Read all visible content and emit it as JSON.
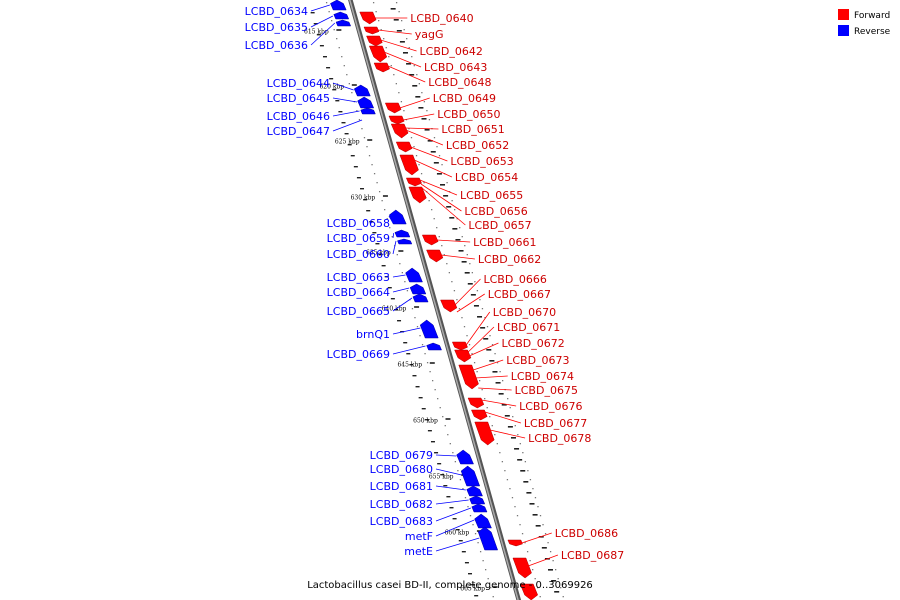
{
  "colors": {
    "forward": "#ff0000",
    "reverse": "#0000ff",
    "backbone": "#888888"
  },
  "legend": [
    {
      "label": "Forward",
      "color": "#ff0000"
    },
    {
      "label": "Reverse",
      "color": "#0000ff"
    }
  ],
  "footer": {
    "title": "Lactobacillus casei BD-II, complete genome - 0..3069926"
  },
  "ticks": [
    "615 kbp",
    "620 kbp",
    "625 kbp",
    "630 kbp",
    "635 kbp",
    "640 kbp",
    "645 kbp",
    "650 kbp",
    "655 kbp",
    "660 kbp",
    "665 kbp"
  ],
  "reverse_genes": [
    "LCBD_0634",
    "LCBD_0635",
    "LCBD_0636",
    "LCBD_0644",
    "LCBD_0645",
    "LCBD_0646",
    "LCBD_0647",
    "LCBD_0658",
    "LCBD_0659",
    "LCBD_0660",
    "LCBD_0663",
    "LCBD_0664",
    "LCBD_0665",
    "brnQ1",
    "LCBD_0669",
    "LCBD_0679",
    "LCBD_0680",
    "LCBD_0681",
    "LCBD_0682",
    "LCBD_0683",
    "metF",
    "metE"
  ],
  "forward_genes": [
    "LCBD_0640",
    "yagG",
    "LCBD_0642",
    "LCBD_0643",
    "LCBD_0648",
    "LCBD_0649",
    "LCBD_0650",
    "LCBD_0651",
    "LCBD_0652",
    "LCBD_0653",
    "LCBD_0654",
    "LCBD_0655",
    "LCBD_0656",
    "LCBD_0657",
    "LCBD_0661",
    "LCBD_0662",
    "LCBD_0666",
    "LCBD_0667",
    "LCBD_0670",
    "LCBD_0671",
    "LCBD_0672",
    "LCBD_0673",
    "LCBD_0674",
    "LCBD_0675",
    "LCBD_0676",
    "LCBD_0677",
    "LCBD_0678",
    "LCBD_0686",
    "LCBD_0687"
  ]
}
